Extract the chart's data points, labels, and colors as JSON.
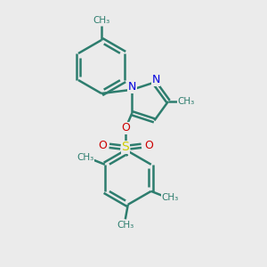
{
  "bg_color": "#ebebeb",
  "bond_color": "#2d7d6e",
  "n_color": "#0000dd",
  "o_color": "#cc0000",
  "s_color": "#cccc00",
  "line_width": 1.8,
  "fig_size": [
    3.0,
    3.0
  ],
  "dpi": 100,
  "xlim": [
    0,
    10
  ],
  "ylim": [
    0,
    10
  ]
}
